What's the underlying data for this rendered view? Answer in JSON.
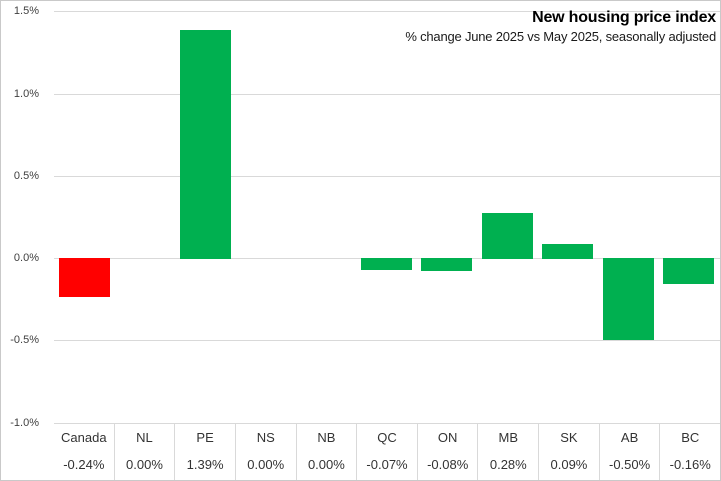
{
  "header": {
    "title": "New housing price index",
    "subtitle": "% change June 2025 vs May 2025, seasonally adjusted"
  },
  "chart_data": {
    "type": "bar",
    "title": "New housing price index",
    "subtitle": "% change June 2025 vs May 2025, seasonally adjusted",
    "categories": [
      "Canada",
      "NL",
      "PE",
      "NS",
      "NB",
      "QC",
      "ON",
      "MB",
      "SK",
      "AB",
      "BC"
    ],
    "values": [
      -0.24,
      0.0,
      1.39,
      0.0,
      0.0,
      -0.07,
      -0.08,
      0.28,
      0.09,
      -0.5,
      -0.16
    ],
    "value_labels": [
      "-0.24%",
      "0.00%",
      "1.39%",
      "0.00%",
      "0.00%",
      "-0.07%",
      "-0.08%",
      "0.28%",
      "0.09%",
      "-0.50%",
      "-0.16%"
    ],
    "bar_colors": [
      "#ff0000",
      "#00b050",
      "#00b050",
      "#00b050",
      "#00b050",
      "#00b050",
      "#00b050",
      "#00b050",
      "#00b050",
      "#00b050",
      "#00b050"
    ],
    "highlighted_category": "Canada",
    "highlight_color": "#ff0000",
    "default_bar_color": "#00b050",
    "y_ticks": [
      1.5,
      1.0,
      0.5,
      0.0,
      -0.5,
      -1.0
    ],
    "y_tick_labels": [
      "1.5%",
      "1.0%",
      "0.5%",
      "0.0%",
      "-0.5%",
      "-1.0%"
    ],
    "ylim": [
      -1.0,
      1.5
    ],
    "grid": true,
    "legend": false,
    "gridline_color": "#d9d9d9",
    "axis_text_color": "#404040"
  }
}
